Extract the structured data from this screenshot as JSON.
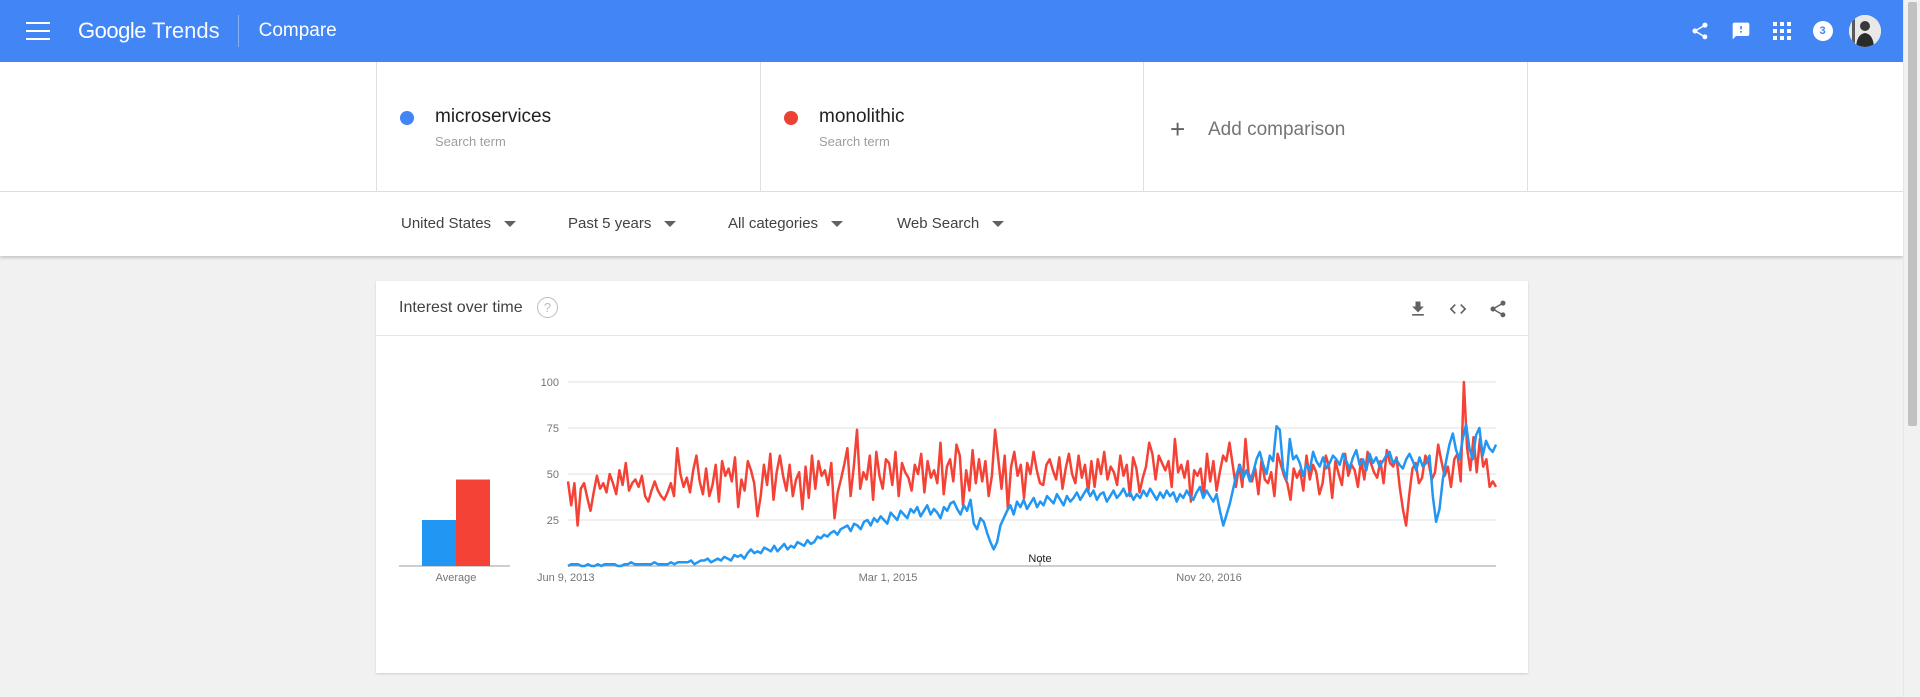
{
  "header": {
    "brand_google": "Google",
    "brand_trends": "Trends",
    "page_name": "Compare",
    "notification_count": "3",
    "icons": [
      "menu-icon",
      "share-icon",
      "feedback-icon",
      "apps-icon",
      "avatar"
    ],
    "color": "#4285f4"
  },
  "terms": [
    {
      "name": "microservices",
      "subtitle": "Search term",
      "color": "#4285f4"
    },
    {
      "name": "monolithic",
      "subtitle": "Search term",
      "color": "#ea4335"
    }
  ],
  "add_comparison": {
    "label": "Add comparison",
    "icon": "plus-icon"
  },
  "filters": {
    "region": "United States",
    "time": "Past 5 years",
    "category": "All categories",
    "search_type": "Web Search"
  },
  "card": {
    "title": "Interest over time",
    "help_icon": "?",
    "actions": [
      "download-icon",
      "embed-icon",
      "share-icon"
    ]
  },
  "chart_data": {
    "type": "line",
    "y_ticks": [
      "100",
      "75",
      "50",
      "25"
    ],
    "ylim": [
      0,
      100
    ],
    "x_tick_labels": [
      "Jun 9, 2013",
      "Mar 1, 2015",
      "Nov 20, 2016"
    ],
    "x_range": [
      "2013-06-02",
      "2018-05-27"
    ],
    "average_label": "Average",
    "note_label": "Note",
    "grid": true,
    "series": [
      {
        "name": "microservices",
        "color": "#2196f3",
        "average": 25,
        "values": [
          0,
          1,
          1,
          1,
          0,
          0,
          1,
          0,
          0,
          1,
          0,
          1,
          1,
          1,
          1,
          0,
          0,
          1,
          1,
          2,
          1,
          1,
          1,
          1,
          1,
          1,
          2,
          1,
          1,
          1,
          1,
          2,
          1,
          2,
          2,
          2,
          2,
          3,
          1,
          2,
          3,
          3,
          4,
          2,
          3,
          4,
          3,
          5,
          4,
          3,
          6,
          5,
          6,
          4,
          7,
          9,
          7,
          8,
          7,
          10,
          9,
          8,
          11,
          8,
          10,
          12,
          9,
          11,
          10,
          13,
          12,
          11,
          14,
          12,
          13,
          16,
          15,
          17,
          16,
          18,
          19,
          17,
          20,
          21,
          22,
          19,
          23,
          22,
          20,
          24,
          25,
          22,
          26,
          24,
          27,
          25,
          23,
          29,
          27,
          25,
          30,
          28,
          26,
          31,
          29,
          32,
          27,
          30,
          33,
          28,
          31,
          29,
          26,
          32,
          30,
          34,
          35,
          31,
          28,
          33,
          30,
          36,
          23,
          20,
          26,
          24,
          18,
          13,
          9,
          13,
          22,
          26,
          30,
          33,
          28,
          35,
          32,
          36,
          31,
          34,
          37,
          32,
          35,
          33,
          38,
          36,
          34,
          39,
          36,
          33,
          38,
          35,
          37,
          40,
          36,
          39,
          42,
          38,
          41,
          36,
          39,
          40,
          35,
          38,
          41,
          37,
          39,
          42,
          38,
          40,
          36,
          39,
          37,
          41,
          38,
          42,
          39,
          36,
          40,
          37,
          41,
          38,
          40,
          35,
          39,
          37,
          41,
          38,
          36,
          40,
          43,
          37,
          41,
          38,
          35,
          39,
          30,
          22,
          28,
          34,
          42,
          50,
          55,
          48,
          52,
          46,
          51,
          58,
          62,
          55,
          50,
          60,
          57,
          76,
          74,
          53,
          47,
          69,
          58,
          60,
          56,
          49,
          55,
          52,
          62,
          57,
          54,
          59,
          53,
          56,
          60,
          58,
          55,
          61,
          57,
          53,
          59,
          63,
          55,
          58,
          52,
          61,
          56,
          59,
          54,
          57,
          60,
          62,
          56,
          58,
          55,
          53,
          58,
          61,
          57,
          52,
          59,
          54,
          56,
          60,
          38,
          24,
          31,
          47,
          57,
          66,
          72,
          63,
          58,
          69,
          77,
          64,
          58,
          71,
          75,
          60,
          68,
          64,
          62,
          66
        ]
      },
      {
        "name": "monolithic",
        "color": "#f44336",
        "average": 47,
        "values": [
          46,
          33,
          45,
          22,
          42,
          45,
          37,
          30,
          40,
          49,
          42,
          45,
          40,
          50,
          45,
          39,
          52,
          44,
          56,
          41,
          45,
          47,
          43,
          49,
          38,
          35,
          41,
          46,
          41,
          38,
          36,
          40,
          45,
          38,
          64,
          50,
          43,
          48,
          40,
          52,
          60,
          46,
          39,
          53,
          38,
          44,
          55,
          35,
          57,
          49,
          53,
          46,
          59,
          32,
          47,
          41,
          57,
          52,
          45,
          27,
          38,
          55,
          44,
          61,
          36,
          51,
          60,
          49,
          41,
          55,
          38,
          47,
          51,
          31,
          54,
          37,
          60,
          42,
          57,
          49,
          52,
          44,
          56,
          26,
          40,
          47,
          55,
          64,
          38,
          54,
          74,
          42,
          51,
          47,
          60,
          36,
          62,
          49,
          42,
          58,
          56,
          44,
          62,
          38,
          56,
          51,
          48,
          41,
          55,
          50,
          61,
          40,
          57,
          48,
          52,
          45,
          67,
          39,
          54,
          58,
          46,
          66,
          60,
          33,
          52,
          41,
          63,
          45,
          58,
          46,
          57,
          38,
          49,
          74,
          58,
          42,
          60,
          31,
          54,
          62,
          49,
          55,
          37,
          56,
          50,
          62,
          52,
          45,
          44,
          55,
          58,
          52,
          47,
          59,
          42,
          53,
          61,
          50,
          45,
          60,
          48,
          55,
          40,
          57,
          43,
          58,
          50,
          62,
          47,
          54,
          51,
          44,
          60,
          49,
          55,
          38,
          59,
          53,
          40,
          48,
          54,
          67,
          61,
          47,
          60,
          56,
          52,
          57,
          43,
          69,
          51,
          55,
          48,
          57,
          35,
          52,
          49,
          53,
          38,
          61,
          46,
          57,
          41,
          51,
          60,
          57,
          67,
          55,
          43,
          55,
          43,
          69,
          50,
          46,
          53,
          39,
          58,
          47,
          45,
          51,
          38,
          61,
          55,
          49,
          45,
          36,
          53,
          48,
          52,
          41,
          60,
          47,
          55,
          51,
          39,
          45,
          60,
          54,
          37,
          57,
          50,
          44,
          61,
          49,
          55,
          52,
          43,
          58,
          47,
          62,
          56,
          51,
          48,
          57,
          45,
          63,
          56,
          54,
          59,
          43,
          31,
          22,
          39,
          53,
          56,
          45,
          48,
          60,
          56,
          47,
          51,
          66,
          57,
          49,
          54,
          43,
          58,
          61,
          46,
          100,
          64,
          52,
          70,
          51,
          69,
          54,
          58,
          43,
          46,
          43
        ]
      }
    ]
  }
}
